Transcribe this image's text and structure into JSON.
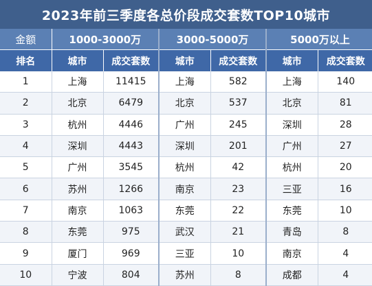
{
  "title": "2023年前三季度各总价段成交套数TOP10城市",
  "bands": {
    "label": "金额",
    "band1": "1000-3000万",
    "band2": "3000-5000万",
    "band3": "5000万以上"
  },
  "columns": {
    "rank": "排名",
    "city": "城市",
    "count": "成交套数"
  },
  "rows": [
    {
      "rank": "1",
      "c1": "上海",
      "n1": "11415",
      "c2": "上海",
      "n2": "582",
      "c3": "上海",
      "n3": "140"
    },
    {
      "rank": "2",
      "c1": "北京",
      "n1": "6479",
      "c2": "北京",
      "n2": "537",
      "c3": "北京",
      "n3": "81"
    },
    {
      "rank": "3",
      "c1": "杭州",
      "n1": "4446",
      "c2": "广州",
      "n2": "245",
      "c3": "深圳",
      "n3": "28"
    },
    {
      "rank": "4",
      "c1": "深圳",
      "n1": "4443",
      "c2": "深圳",
      "n2": "201",
      "c3": "广州",
      "n3": "27"
    },
    {
      "rank": "5",
      "c1": "广州",
      "n1": "3545",
      "c2": "杭州",
      "n2": "42",
      "c3": "杭州",
      "n3": "20"
    },
    {
      "rank": "6",
      "c1": "苏州",
      "n1": "1266",
      "c2": "南京",
      "n2": "23",
      "c3": "三亚",
      "n3": "16"
    },
    {
      "rank": "7",
      "c1": "南京",
      "n1": "1063",
      "c2": "东莞",
      "n2": "22",
      "c3": "东莞",
      "n3": "10"
    },
    {
      "rank": "8",
      "c1": "东莞",
      "n1": "975",
      "c2": "武汉",
      "n2": "21",
      "c3": "青岛",
      "n3": "8"
    },
    {
      "rank": "9",
      "c1": "厦门",
      "n1": "969",
      "c2": "三亚",
      "n2": "10",
      "c3": "南京",
      "n3": "4"
    },
    {
      "rank": "10",
      "c1": "宁波",
      "n1": "804",
      "c2": "苏州",
      "n2": "8",
      "c3": "成都",
      "n3": "4"
    }
  ],
  "colors": {
    "title_bg": "#3f5f8c",
    "band_bg": "#5b80b4",
    "header_bg": "#3f68a7"
  }
}
